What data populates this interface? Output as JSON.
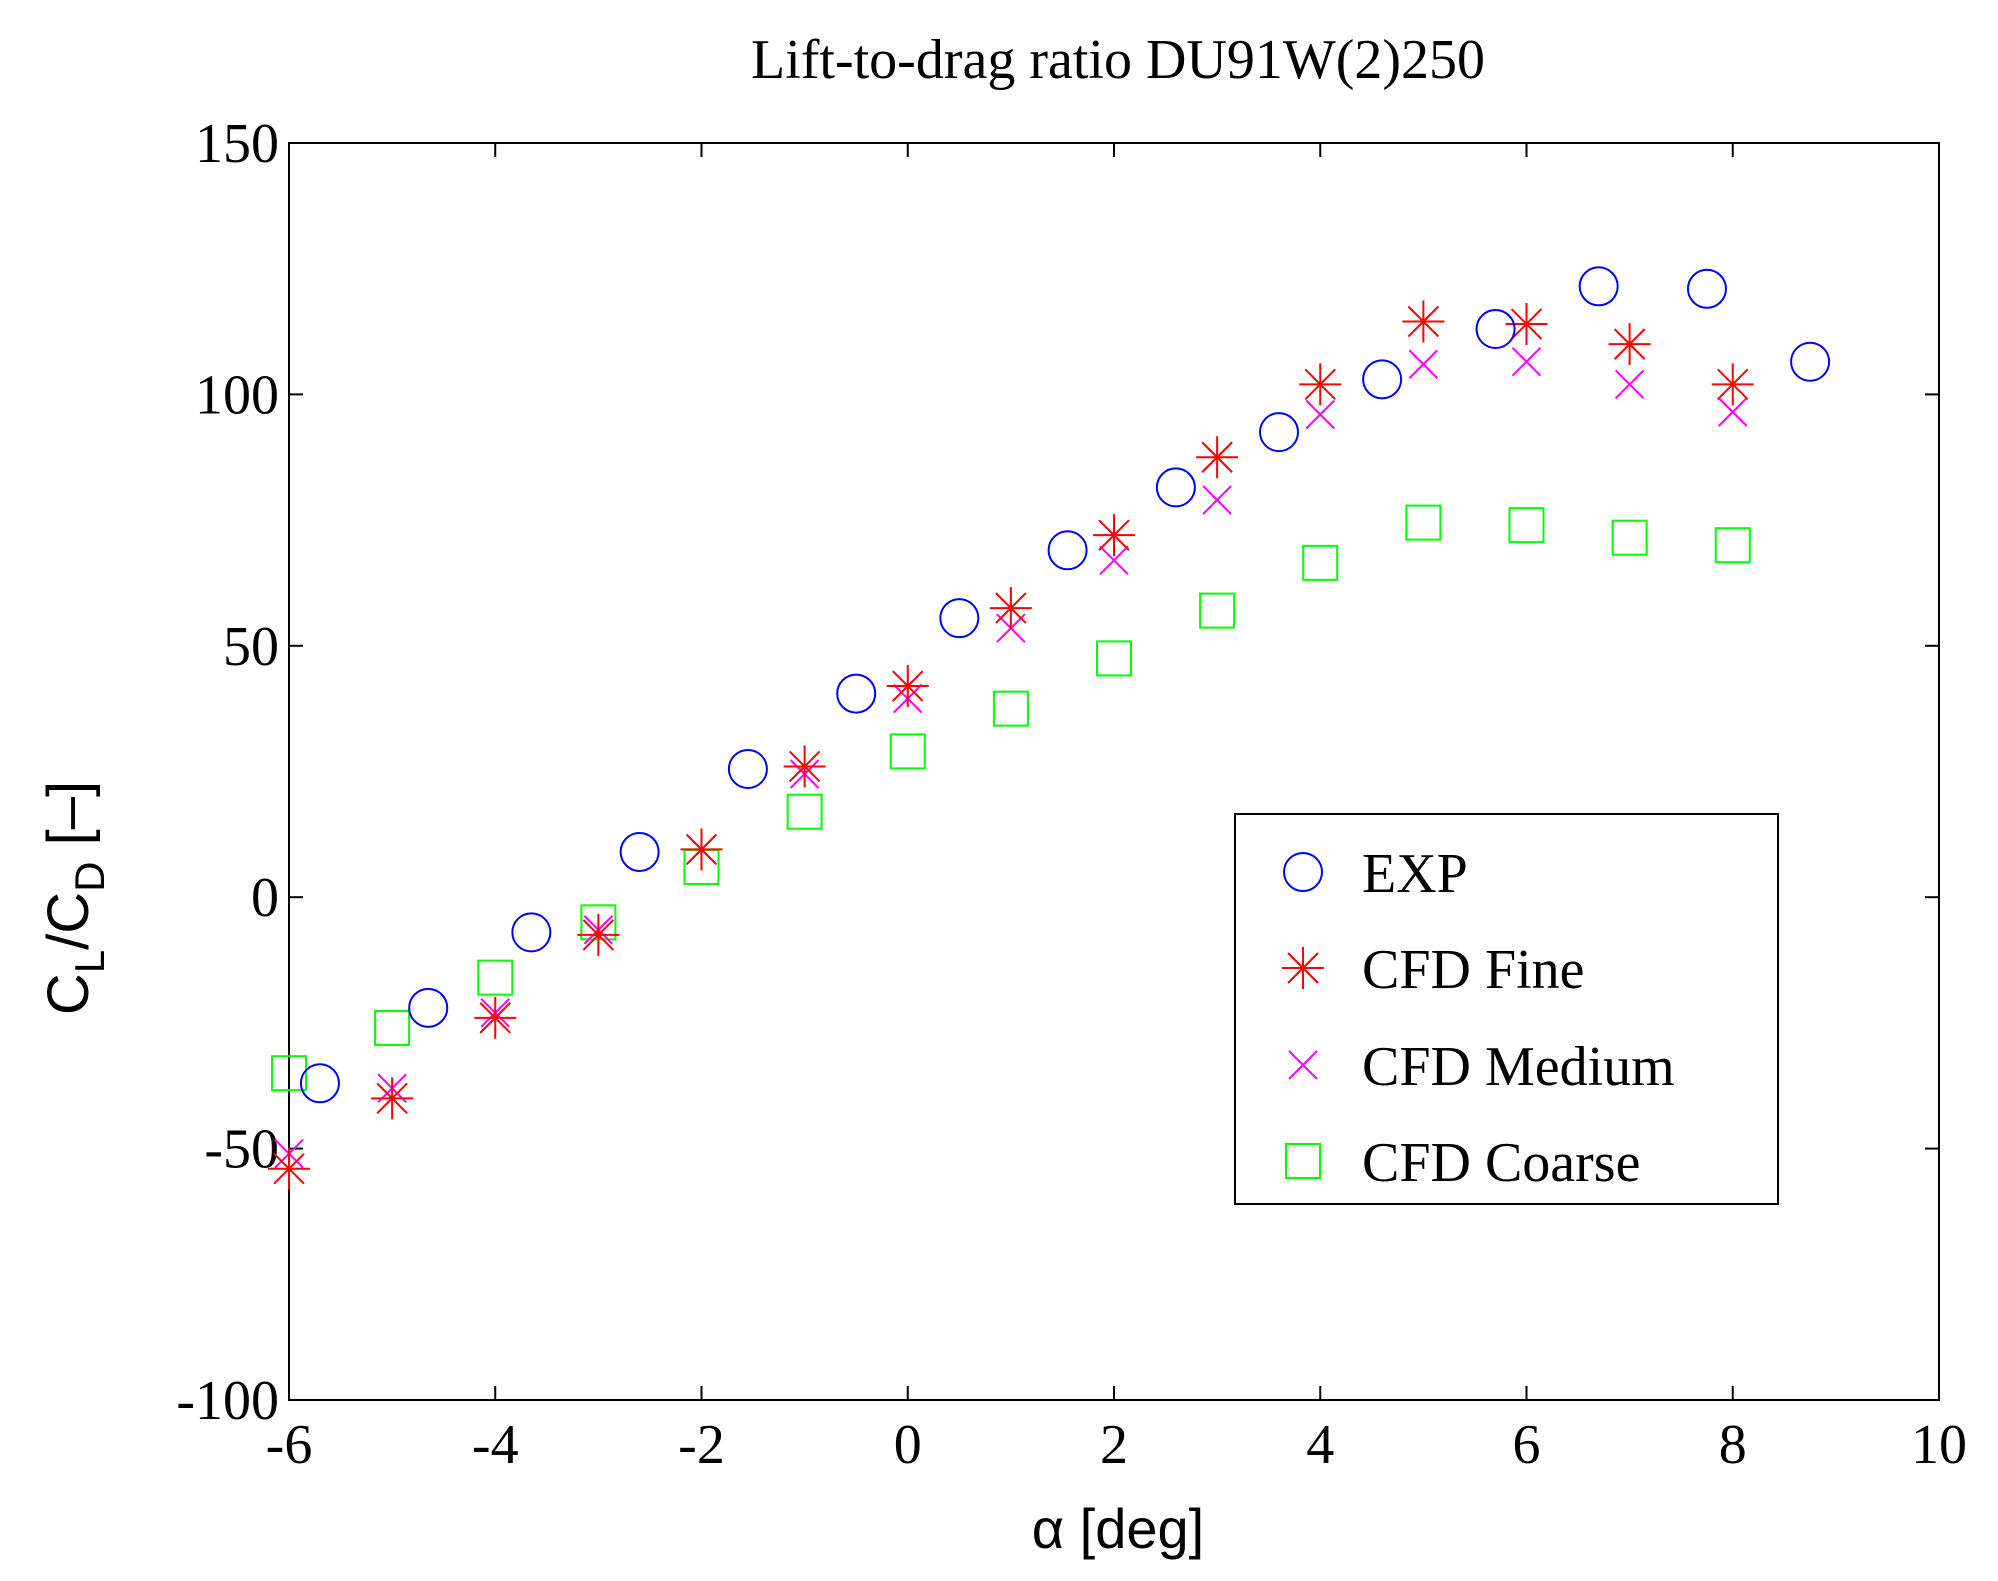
{
  "chart_data": {
    "type": "scatter",
    "title": "Lift-to-drag ratio DU91W(2)250",
    "xlabel": "α [deg]",
    "ylabel": {
      "c1": "C",
      "sub1": "L",
      "slash": "/C",
      "sub2": "D",
      "unit": " [–]"
    },
    "xlim": [
      -6,
      10
    ],
    "ylim": [
      -100,
      150
    ],
    "xticks": [
      "-6",
      "-4",
      "-2",
      "0",
      "2",
      "4",
      "6",
      "8",
      "10"
    ],
    "yticks": [
      "-100",
      "-50",
      "0",
      "50",
      "100",
      "150"
    ],
    "xtick_values": [
      -6,
      -4,
      -2,
      0,
      2,
      4,
      6,
      8,
      10
    ],
    "ytick_values": [
      -100,
      -50,
      0,
      50,
      100,
      150
    ],
    "grid": false,
    "legend_position": "center-right",
    "series": [
      {
        "name": "EXP",
        "marker": "circle",
        "color": "#0000ff",
        "x": [
          -5.7,
          -4.65,
          -3.65,
          -2.6,
          -1.55,
          -0.5,
          0.5,
          1.55,
          2.6,
          3.6,
          4.6,
          5.7,
          6.7,
          7.75,
          8.75
        ],
        "y": [
          -37,
          -22,
          -7,
          9,
          25.5,
          40.5,
          55.5,
          69,
          81.5,
          92.5,
          103,
          113,
          121.5,
          121,
          106.5
        ]
      },
      {
        "name": "CFD Fine",
        "marker": "asterisk",
        "color": "#ff0000",
        "x": [
          -6,
          -5,
          -4,
          -3,
          -2,
          -1,
          0,
          1,
          2,
          3,
          4,
          5,
          6,
          7,
          8
        ],
        "y": [
          -54,
          -40,
          -24,
          -7.5,
          9.5,
          26,
          42,
          57.5,
          72,
          87.5,
          102,
          114.5,
          114,
          110,
          102
        ]
      },
      {
        "name": "CFD Medium",
        "marker": "x",
        "color": "#ff00ff",
        "x": [
          -6,
          -5,
          -4,
          -3,
          -2,
          -1,
          0,
          1,
          2,
          3,
          4,
          5,
          6,
          7,
          8
        ],
        "y": [
          -51,
          -38,
          -23,
          -6.5,
          9.5,
          24.5,
          39.5,
          53.5,
          67,
          79,
          96,
          106,
          106.5,
          102,
          96.5
        ]
      },
      {
        "name": "CFD Coarse",
        "marker": "square",
        "color": "#00ff00",
        "x": [
          -6,
          -5,
          -4,
          -3,
          -2,
          -1,
          0,
          1,
          2,
          3,
          4,
          5,
          6,
          7,
          8
        ],
        "y": [
          -35,
          -26,
          -16,
          -5,
          6,
          17,
          29,
          37.5,
          47.5,
          57,
          66.5,
          74.5,
          74,
          71.5,
          70
        ]
      }
    ]
  }
}
